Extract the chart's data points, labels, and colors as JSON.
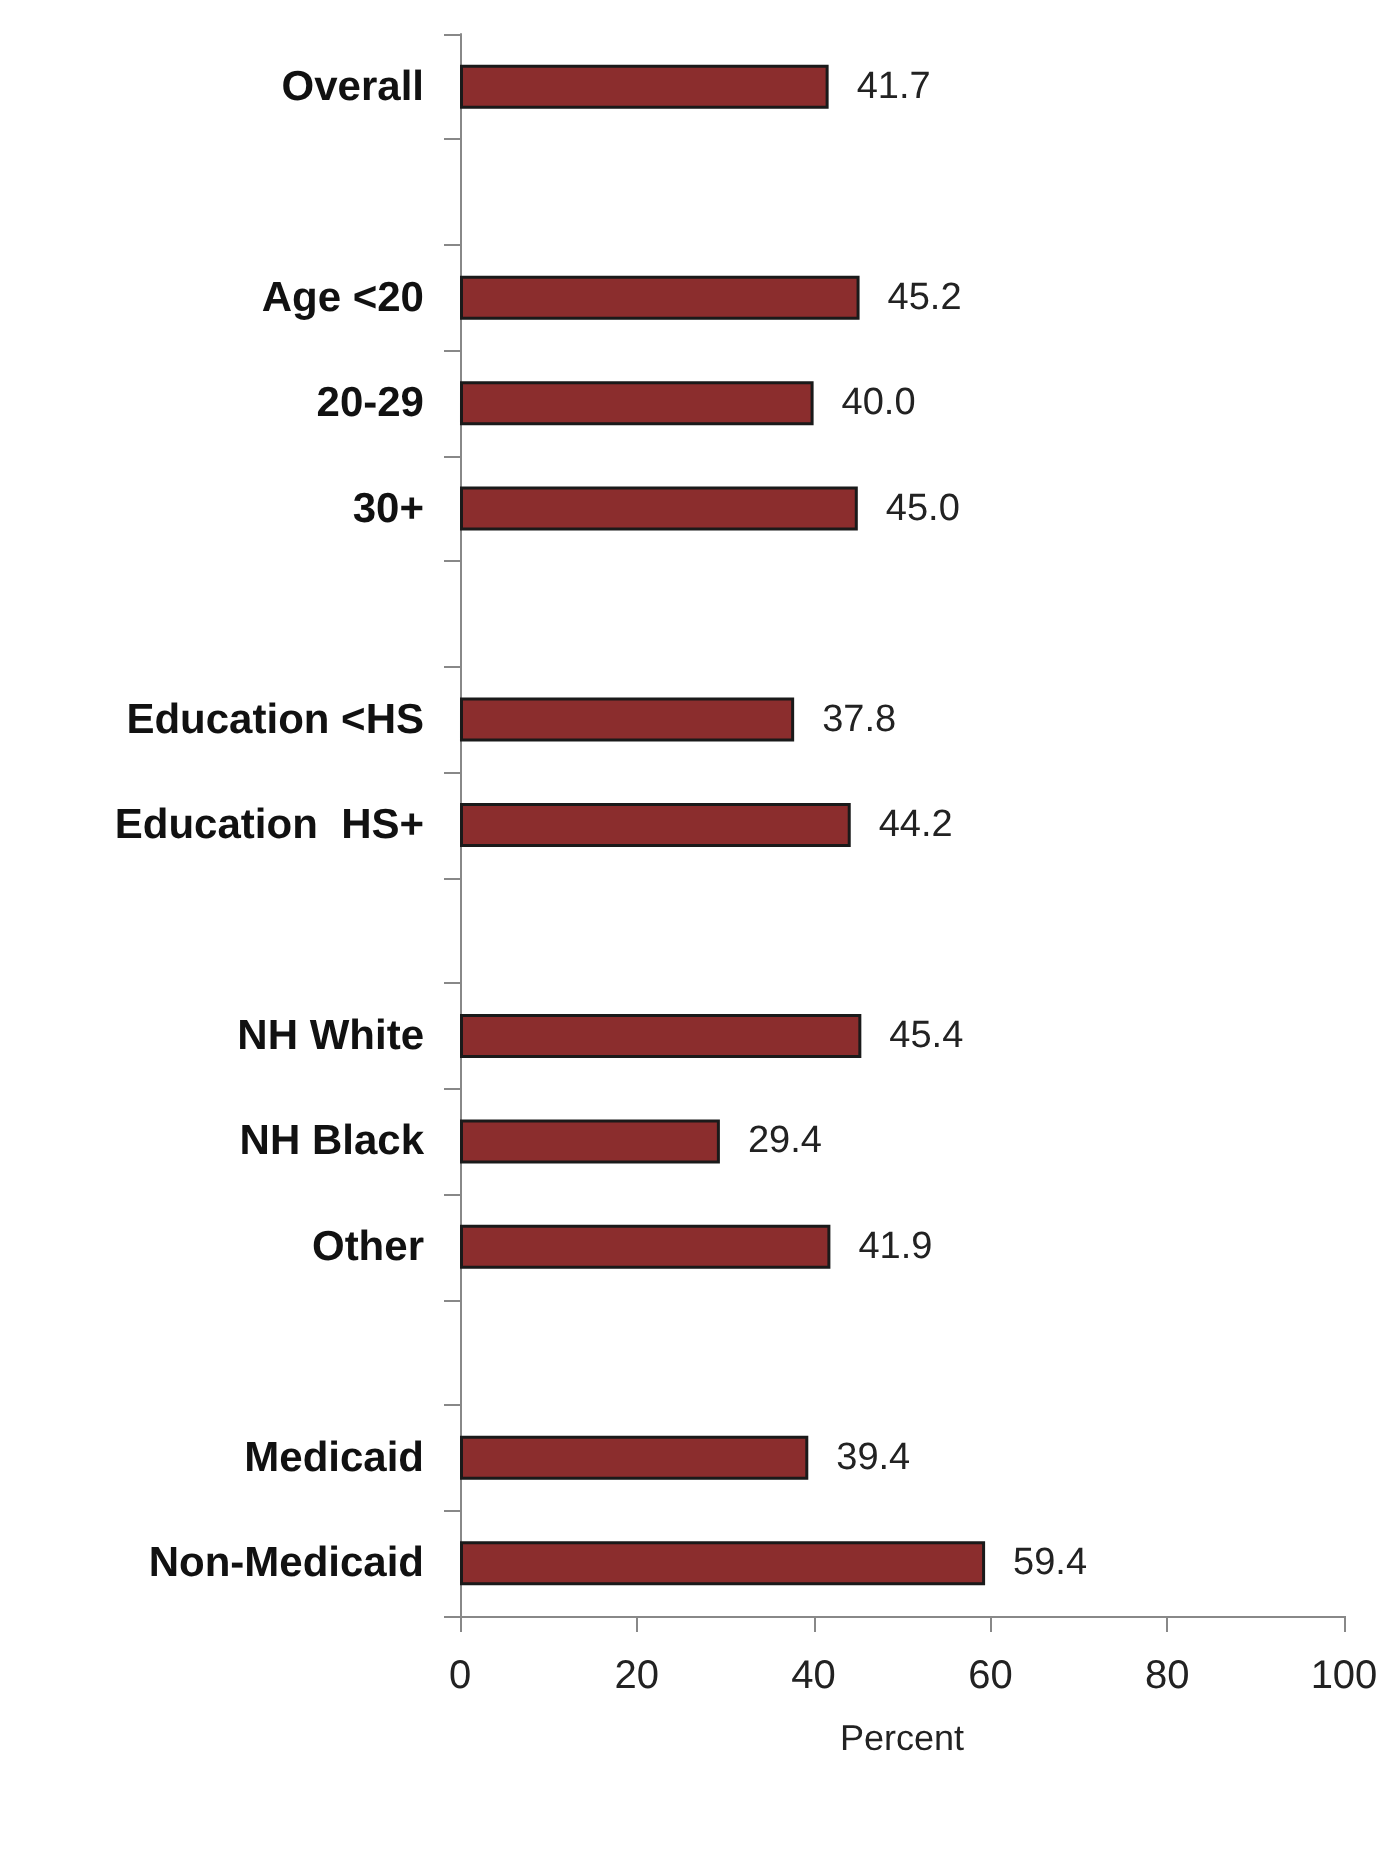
{
  "chart_data": {
    "type": "bar",
    "orientation": "horizontal",
    "xlabel": "Percent",
    "categories": [
      "Overall",
      null,
      "Age <20",
      "20-29",
      "30+",
      null,
      "Education <HS",
      "Education  HS+",
      null,
      "NH White",
      "NH Black",
      "Other",
      null,
      "Medicaid",
      "Non-Medicaid"
    ],
    "values": [
      41.7,
      null,
      45.2,
      40.0,
      45.0,
      null,
      37.8,
      44.2,
      null,
      45.4,
      29.4,
      41.9,
      null,
      39.4,
      59.4
    ],
    "value_labels": [
      "41.7",
      null,
      "45.2",
      "40.0",
      "45.0",
      null,
      "37.8",
      "44.2",
      null,
      "45.4",
      "29.4",
      "41.9",
      null,
      "39.4",
      "59.4"
    ],
    "color": "#8b2d2d",
    "xlim": [
      0,
      100
    ],
    "xticks": [
      0,
      20,
      40,
      60,
      80,
      100
    ]
  }
}
